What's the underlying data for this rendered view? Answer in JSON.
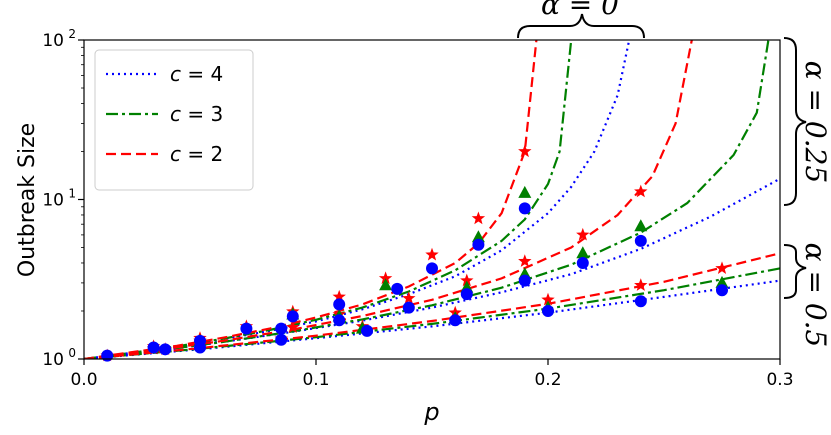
{
  "chart_data": {
    "type": "line",
    "xlabel": "p",
    "ylabel": "Outbreak Size",
    "xlim": [
      0.0,
      0.3
    ],
    "ylim": [
      1,
      100
    ],
    "yscale": "log",
    "xticks": [
      {
        "value": 0.0,
        "label": "0.0"
      },
      {
        "value": 0.1,
        "label": "0.1"
      },
      {
        "value": 0.2,
        "label": "0.2"
      },
      {
        "value": 0.3,
        "label": "0.3"
      }
    ],
    "yticks": [
      {
        "value": 1,
        "base": "10",
        "exp": "0"
      },
      {
        "value": 10,
        "base": "10",
        "exp": "1"
      },
      {
        "value": 100,
        "base": "10",
        "exp": "2"
      }
    ],
    "legend": {
      "placement": "top-left",
      "entries": [
        {
          "var": "c",
          "eq": " = ",
          "val": "4",
          "color": "#0000ff",
          "style": "dotted"
        },
        {
          "var": "c",
          "eq": " = ",
          "val": "3",
          "color": "#008000",
          "style": "dashdot"
        },
        {
          "var": "c",
          "eq": " = ",
          "val": "2",
          "color": "#ff0000",
          "style": "dashed"
        }
      ]
    },
    "annotations": [
      {
        "text": "α = 0",
        "placement": "top",
        "orientation": "horizontal"
      },
      {
        "text": "α = 0.25",
        "placement": "right-upper",
        "orientation": "vertical"
      },
      {
        "text": "α = 0.5",
        "placement": "right-lower",
        "orientation": "vertical"
      }
    ],
    "series": [
      {
        "c": 4,
        "alpha": 0,
        "color": "#0000ff",
        "style": "dotted",
        "x": [
          0.0,
          0.02,
          0.04,
          0.06,
          0.08,
          0.1,
          0.12,
          0.14,
          0.16,
          0.18,
          0.2,
          0.21,
          0.22,
          0.23,
          0.235
        ],
        "y": [
          1.0,
          1.09,
          1.19,
          1.33,
          1.5,
          1.72,
          2.05,
          2.55,
          3.3,
          4.8,
          8.2,
          12.0,
          20,
          45,
          100
        ]
      },
      {
        "c": 3,
        "alpha": 0,
        "color": "#008000",
        "style": "dashdot",
        "x": [
          0.0,
          0.02,
          0.04,
          0.06,
          0.08,
          0.1,
          0.12,
          0.14,
          0.16,
          0.18,
          0.19,
          0.2,
          0.205,
          0.21
        ],
        "y": [
          1.0,
          1.09,
          1.2,
          1.34,
          1.52,
          1.76,
          2.1,
          2.65,
          3.6,
          5.5,
          7.5,
          12.5,
          20,
          100
        ]
      },
      {
        "c": 2,
        "alpha": 0,
        "color": "#ff0000",
        "style": "dashed",
        "x": [
          0.0,
          0.02,
          0.04,
          0.06,
          0.08,
          0.1,
          0.12,
          0.14,
          0.16,
          0.17,
          0.18,
          0.19,
          0.195
        ],
        "y": [
          1.0,
          1.1,
          1.21,
          1.36,
          1.55,
          1.82,
          2.2,
          2.85,
          4.0,
          5.3,
          8.2,
          20,
          100
        ]
      },
      {
        "c": 4,
        "alpha": 0.25,
        "color": "#0000ff",
        "style": "dotted",
        "x": [
          0.0,
          0.03,
          0.06,
          0.09,
          0.12,
          0.15,
          0.18,
          0.21,
          0.24,
          0.27,
          0.3
        ],
        "y": [
          1.0,
          1.12,
          1.28,
          1.48,
          1.74,
          2.1,
          2.62,
          3.4,
          4.9,
          7.8,
          13.5
        ]
      },
      {
        "c": 3,
        "alpha": 0.25,
        "color": "#008000",
        "style": "dashdot",
        "x": [
          0.0,
          0.03,
          0.06,
          0.09,
          0.12,
          0.15,
          0.18,
          0.21,
          0.24,
          0.26,
          0.28,
          0.29,
          0.295
        ],
        "y": [
          1.0,
          1.12,
          1.28,
          1.49,
          1.77,
          2.17,
          2.8,
          3.9,
          6.2,
          9.5,
          19,
          35,
          100
        ]
      },
      {
        "c": 2,
        "alpha": 0.25,
        "color": "#ff0000",
        "style": "dashed",
        "x": [
          0.0,
          0.03,
          0.06,
          0.09,
          0.12,
          0.15,
          0.18,
          0.21,
          0.23,
          0.245,
          0.255,
          0.262
        ],
        "y": [
          1.0,
          1.13,
          1.3,
          1.53,
          1.86,
          2.35,
          3.2,
          5.0,
          8.0,
          14,
          30,
          100
        ]
      },
      {
        "c": 4,
        "alpha": 0.5,
        "color": "#0000ff",
        "style": "dotted",
        "x": [
          0.0,
          0.05,
          0.1,
          0.15,
          0.2,
          0.25,
          0.3
        ],
        "y": [
          1.0,
          1.15,
          1.35,
          1.6,
          1.95,
          2.45,
          3.1
        ]
      },
      {
        "c": 3,
        "alpha": 0.5,
        "color": "#008000",
        "style": "dashdot",
        "x": [
          0.0,
          0.05,
          0.1,
          0.15,
          0.2,
          0.25,
          0.3
        ],
        "y": [
          1.0,
          1.16,
          1.37,
          1.66,
          2.07,
          2.7,
          3.7
        ]
      },
      {
        "c": 2,
        "alpha": 0.5,
        "color": "#ff0000",
        "style": "dashed",
        "x": [
          0.0,
          0.05,
          0.1,
          0.15,
          0.2,
          0.25,
          0.3
        ],
        "y": [
          1.0,
          1.17,
          1.4,
          1.73,
          2.22,
          3.05,
          4.6
        ]
      }
    ],
    "markers": [
      {
        "c": 2,
        "shape": "star",
        "color": "#ff0000",
        "points": [
          [
            0.01,
            1.05
          ],
          [
            0.03,
            1.2
          ],
          [
            0.05,
            1.35
          ],
          [
            0.07,
            1.6
          ],
          [
            0.09,
            1.98
          ],
          [
            0.11,
            2.45
          ],
          [
            0.13,
            3.2
          ],
          [
            0.15,
            4.5
          ],
          [
            0.17,
            7.6
          ],
          [
            0.19,
            20
          ],
          [
            0.03,
            1.16
          ],
          [
            0.05,
            1.3
          ],
          [
            0.09,
            1.58
          ],
          [
            0.11,
            1.9
          ],
          [
            0.14,
            2.4
          ],
          [
            0.165,
            3.1
          ],
          [
            0.19,
            4.1
          ],
          [
            0.215,
            6.0
          ],
          [
            0.24,
            11.2
          ],
          [
            0.035,
            1.15
          ],
          [
            0.085,
            1.34
          ],
          [
            0.12,
            1.6
          ],
          [
            0.16,
            1.95
          ],
          [
            0.2,
            2.35
          ],
          [
            0.24,
            2.9
          ],
          [
            0.275,
            3.7
          ]
        ]
      },
      {
        "c": 3,
        "shape": "triangle",
        "color": "#008000",
        "points": [
          [
            0.05,
            1.3
          ],
          [
            0.09,
            1.9
          ],
          [
            0.13,
            2.9
          ],
          [
            0.17,
            5.8
          ],
          [
            0.19,
            11
          ],
          [
            0.11,
            1.85
          ],
          [
            0.165,
            2.8
          ],
          [
            0.19,
            3.4
          ],
          [
            0.215,
            4.6
          ],
          [
            0.24,
            6.8
          ],
          [
            0.12,
            1.55
          ],
          [
            0.16,
            1.8
          ],
          [
            0.2,
            2.1
          ],
          [
            0.275,
            3.0
          ]
        ]
      },
      {
        "c": 4,
        "shape": "circle",
        "color": "#0000ff",
        "points": [
          [
            0.01,
            1.05
          ],
          [
            0.03,
            1.18
          ],
          [
            0.035,
            1.15
          ],
          [
            0.05,
            1.18
          ],
          [
            0.05,
            1.3
          ],
          [
            0.07,
            1.55
          ],
          [
            0.085,
            1.32
          ],
          [
            0.085,
            1.55
          ],
          [
            0.09,
            1.85
          ],
          [
            0.11,
            2.2
          ],
          [
            0.11,
            1.75
          ],
          [
            0.122,
            1.5
          ],
          [
            0.135,
            2.75
          ],
          [
            0.14,
            2.1
          ],
          [
            0.15,
            3.7
          ],
          [
            0.16,
            1.75
          ],
          [
            0.165,
            2.55
          ],
          [
            0.17,
            5.2
          ],
          [
            0.19,
            3.1
          ],
          [
            0.19,
            8.8
          ],
          [
            0.2,
            2.0
          ],
          [
            0.215,
            4.0
          ],
          [
            0.24,
            5.5
          ],
          [
            0.24,
            2.3
          ],
          [
            0.275,
            2.7
          ]
        ]
      }
    ]
  }
}
